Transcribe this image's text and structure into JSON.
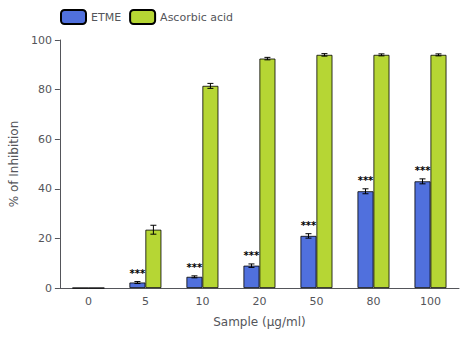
{
  "chart_data": {
    "type": "bar",
    "xlabel": "Sample (μg/ml)",
    "ylabel": "% of Inhibition",
    "categories": [
      "0",
      "5",
      "10",
      "20",
      "50",
      "80",
      "100"
    ],
    "series": [
      {
        "name": "ETME",
        "values": [
          0,
          2.2,
          4.5,
          9.0,
          21.0,
          39.0,
          43.0
        ],
        "errors": [
          0,
          0.4,
          0.4,
          0.7,
          0.9,
          1.0,
          1.0
        ]
      },
      {
        "name": "Ascorbic acid",
        "values": [
          0,
          23.5,
          81.5,
          92.5,
          94.0,
          94.0,
          94.0
        ],
        "errors": [
          0,
          1.8,
          1.0,
          0.5,
          0.5,
          0.4,
          0.4
        ]
      }
    ],
    "annotations": [
      {
        "series": "ETME",
        "category": "5",
        "text": "***"
      },
      {
        "series": "ETME",
        "category": "10",
        "text": "***"
      },
      {
        "series": "ETME",
        "category": "20",
        "text": "***"
      },
      {
        "series": "ETME",
        "category": "50",
        "text": "***"
      },
      {
        "series": "ETME",
        "category": "80",
        "text": "***"
      },
      {
        "series": "ETME",
        "category": "100",
        "text": "***"
      }
    ],
    "ylim": [
      0,
      100
    ],
    "yticks": [
      0,
      20,
      40,
      60,
      80,
      100
    ],
    "grid": false,
    "legend": "upper left"
  }
}
